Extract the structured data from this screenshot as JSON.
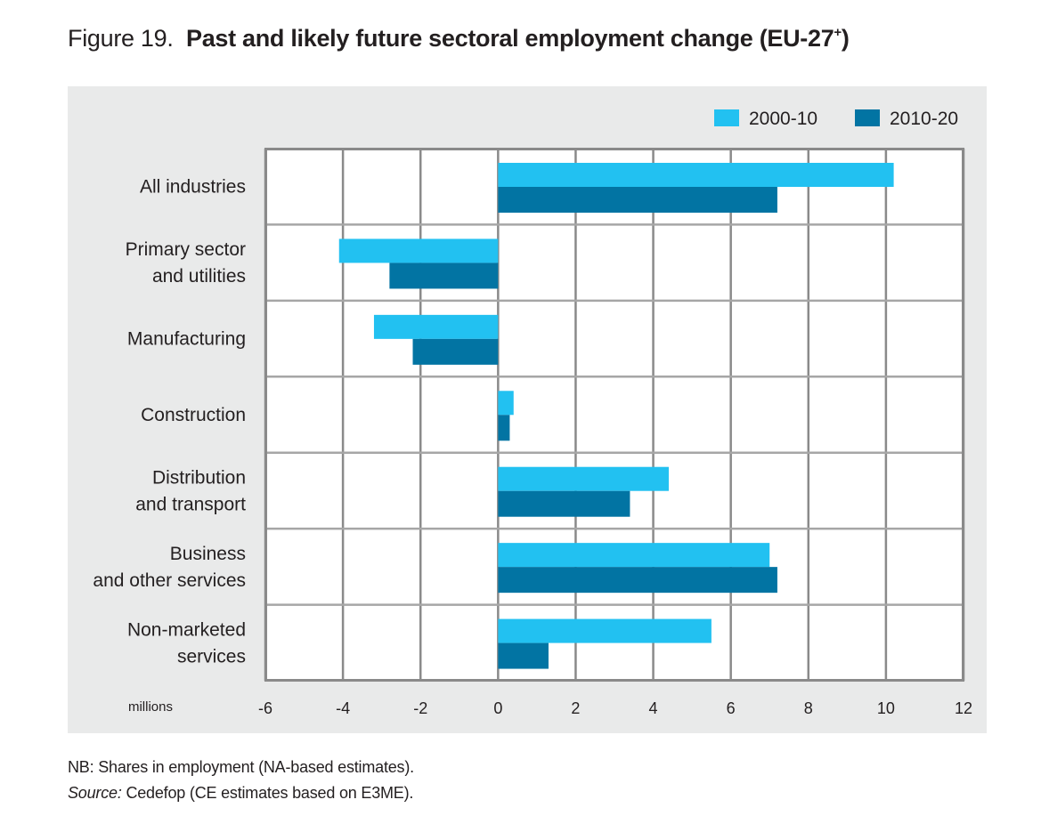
{
  "figure": {
    "number_label": "Figure 19.",
    "title": "Past and likely future sectoral employment change (EU-27",
    "title_superscript": "+",
    "title_close": ")"
  },
  "notes": {
    "nb": "NB: Shares in employment (NA-based estimates).",
    "source_label": "Source:",
    "source_text": " Cedefop (CE estimates based on E3ME)."
  },
  "chart_data": {
    "type": "bar",
    "orientation": "horizontal",
    "title": "Past and likely future sectoral employment change (EU-27+)",
    "xlabel": "millions",
    "ylabel": "",
    "xlim": [
      -6,
      12
    ],
    "xticks": [
      -6,
      -4,
      -2,
      0,
      2,
      4,
      6,
      8,
      10,
      12
    ],
    "grid": true,
    "legend_position": "top-right",
    "categories": [
      [
        "All industries"
      ],
      [
        "Primary sector",
        "and utilities"
      ],
      [
        "Manufacturing"
      ],
      [
        "Construction"
      ],
      [
        "Distribution",
        "and transport"
      ],
      [
        "Business",
        "and other services"
      ],
      [
        "Non-marketed",
        "services"
      ]
    ],
    "series": [
      {
        "name": "2000-10",
        "color": "#22c1f1",
        "values": [
          10.2,
          -4.1,
          -3.2,
          0.4,
          4.4,
          7.0,
          5.5
        ]
      },
      {
        "name": "2010-20",
        "color": "#0274a3",
        "values": [
          7.2,
          -2.8,
          -2.2,
          0.3,
          3.4,
          7.2,
          1.3
        ]
      }
    ],
    "colors": {
      "panel_bg": "#e9eaea",
      "plot_bg": "#ffffff",
      "grid": "#8a8a8a",
      "text": "#231f20"
    }
  }
}
